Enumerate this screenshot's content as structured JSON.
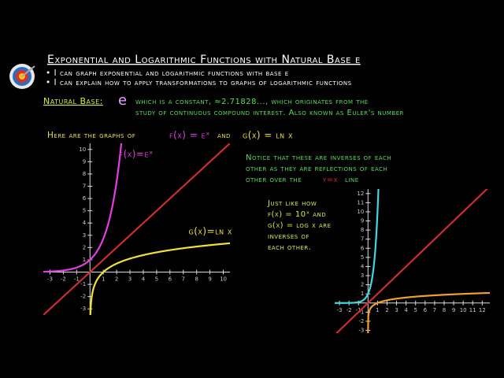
{
  "header": {
    "title": "Exponential and Logarithmic Functions with Natural Base e",
    "objectives": [
      "• I can graph exponential and logarithmic functions with base e",
      "• I can explain how to apply transformations to graphs of logarithmic functions"
    ]
  },
  "definition": {
    "label": "Natural Base:",
    "symbol": "e",
    "lines": [
      "which is a constant, ≈2.71828..., which originates from the",
      "study of continuous compound interest. Also known as Euler's number"
    ]
  },
  "caption": {
    "text": "Here are the graphs of",
    "f": "f(x) = eˣ",
    "and": "and",
    "g": "g(x) = ln x"
  },
  "notice": {
    "lines": [
      "Notice that these are inverses of each",
      "other as they are reflections of each",
      "other over the"
    ],
    "line_eq": "y=x",
    "line_end": "line"
  },
  "comparison": {
    "lines": [
      "Just like how",
      "f(x) = 10ˣ and",
      "g(x) = log x are",
      "inverses of",
      "each other."
    ]
  },
  "graphs": [
    {
      "f_label": "f(x)=eˣ",
      "g_label": "g(x)=ln x",
      "xlim": [
        -3.5,
        10.5
      ],
      "ylim": [
        -3.5,
        10.5
      ],
      "xticks": [
        -3,
        -2,
        -1,
        1,
        2,
        3,
        4,
        5,
        6,
        7,
        8,
        9,
        10
      ],
      "yticks": [
        -3,
        -2,
        -1,
        1,
        2,
        3,
        4,
        5,
        6,
        7,
        8,
        9,
        10
      ]
    },
    {
      "xlim": [
        -3.5,
        12.8
      ],
      "ylim": [
        -3.3,
        12.5
      ],
      "xticks": [
        -3,
        -2,
        -1,
        1,
        2,
        3,
        4,
        5,
        6,
        7,
        8,
        9,
        10,
        11,
        12
      ],
      "yticks": [
        -3,
        -2,
        -1,
        1,
        2,
        3,
        4,
        5,
        6,
        7,
        8,
        9,
        10,
        11,
        12
      ]
    }
  ]
}
